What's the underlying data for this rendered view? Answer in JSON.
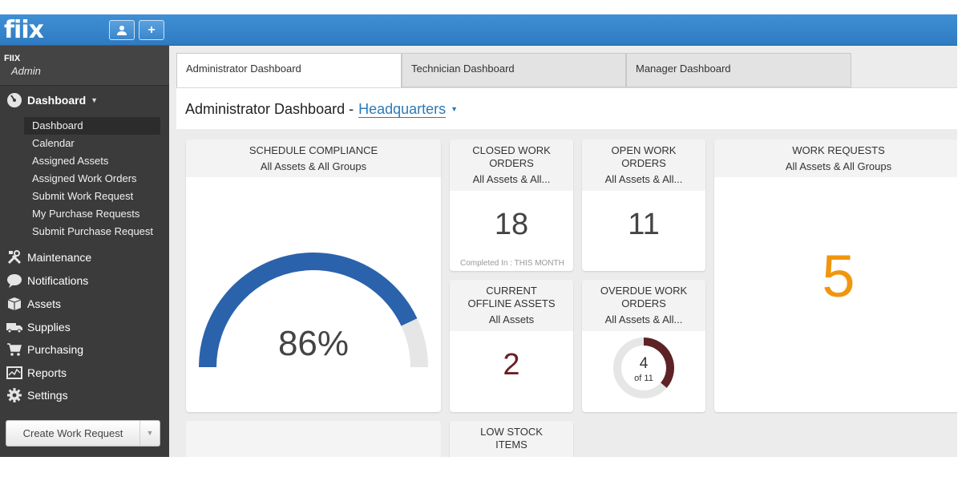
{
  "app": {
    "logo_text": "fiix",
    "accent_color": "#2f7bc2"
  },
  "account": {
    "org": "FIIX",
    "role": "Admin"
  },
  "sidebar": {
    "dashboard_label": "Dashboard",
    "sub_items": [
      {
        "label": "Dashboard",
        "active": true
      },
      {
        "label": "Calendar"
      },
      {
        "label": "Assigned Assets"
      },
      {
        "label": "Assigned Work Orders"
      },
      {
        "label": "Submit Work Request"
      },
      {
        "label": "My Purchase Requests"
      },
      {
        "label": "Submit Purchase Request"
      }
    ],
    "main_items": [
      {
        "label": "Maintenance",
        "icon": "tools-icon"
      },
      {
        "label": "Notifications",
        "icon": "speech-bubble-icon"
      },
      {
        "label": "Assets",
        "icon": "box-icon"
      },
      {
        "label": "Supplies",
        "icon": "truck-icon"
      },
      {
        "label": "Purchasing",
        "icon": "cart-icon"
      },
      {
        "label": "Reports",
        "icon": "chart-icon"
      },
      {
        "label": "Settings",
        "icon": "gear-icon"
      }
    ],
    "create_button": "Create Work Request"
  },
  "tabs": [
    {
      "label": "Administrator Dashboard",
      "active": true
    },
    {
      "label": "Technician Dashboard"
    },
    {
      "label": "Manager Dashboard"
    }
  ],
  "header": {
    "title": "Administrator Dashboard -",
    "location": "Headquarters"
  },
  "cards": {
    "schedule": {
      "title": "SCHEDULE COMPLIANCE",
      "subtitle": "All Assets & All Groups",
      "value": "86%",
      "percent": 86,
      "color": "#2b62ac"
    },
    "closed": {
      "title_1": "CLOSED WORK",
      "title_2": "ORDERS",
      "subtitle": "All Assets & All...",
      "value": "18",
      "footer": "Completed In : THIS MONTH"
    },
    "open": {
      "title_1": "OPEN WORK",
      "title_2": "ORDERS",
      "subtitle": "All Assets & All...",
      "value": "11"
    },
    "requests": {
      "title": "WORK REQUESTS",
      "subtitle": "All Assets & All Groups",
      "value": "5",
      "color": "#f0960e"
    },
    "offline": {
      "title_1": "CURRENT",
      "title_2": "OFFLINE ASSETS",
      "subtitle": "All Assets",
      "value": "2",
      "color": "#6b1e22"
    },
    "overdue": {
      "title_1": "OVERDUE WORK",
      "title_2": "ORDERS",
      "subtitle": "All Assets & All...",
      "value": "4",
      "of_text": "of 11",
      "count": 4,
      "total": 11,
      "color": "#5c2226"
    },
    "lowstock": {
      "title_1": "LOW STOCK",
      "title_2": "ITEMS"
    }
  }
}
